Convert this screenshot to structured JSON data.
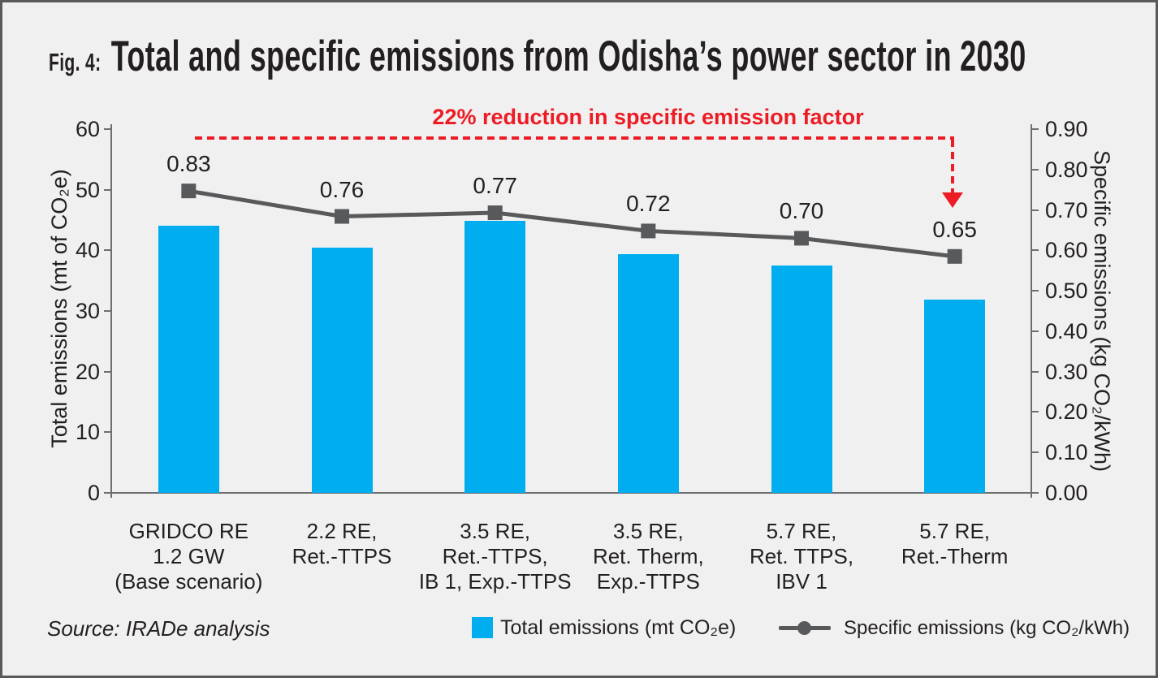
{
  "figure": {
    "fig_label": "Fig. 4:",
    "title": "Total and specific emissions from Odisha’s power sector in 2030"
  },
  "annotation": {
    "text": "22% reduction in specific emission factor",
    "color": "#ec1c24",
    "arrow": "dashed horizontal line with downward arrow pointing at last line marker"
  },
  "source": "Source: IRADe analysis",
  "legend": [
    {
      "swatch": "blue-square",
      "label": "Total emissions (mt CO₂e)",
      "color": "#00aeef"
    },
    {
      "swatch": "gray-line-with-dot",
      "label": "Specific emissions (kg CO₂/kWh)",
      "color": "#58595b"
    }
  ],
  "chart_data": {
    "type": "bar",
    "subtype": "bar+line combo, dual axis",
    "categories": [
      "GRIDCO RE\n1.2 GW\n(Base scenario)",
      "2.2 RE,\nRet.-TTPS",
      "3.5 RE,\nRet.-TTPS,\nIB 1, Exp.-TTPS",
      "3.5 RE,\nRet. Therm,\nExp.-TTPS",
      "5.7 RE,\nRet. TTPS,\nIBV 1",
      "5.7 RE,\nRet.-Therm"
    ],
    "series": [
      {
        "name": "Total emissions (mt CO₂e)",
        "type": "bar",
        "axis": "left",
        "values": [
          44.1,
          40.4,
          44.9,
          39.4,
          37.5,
          31.9
        ],
        "color": "#00aeef"
      },
      {
        "name": "Specific emissions (kg CO₂/kWh)",
        "type": "line",
        "axis": "right",
        "values": [
          0.83,
          0.76,
          0.77,
          0.72,
          0.7,
          0.65
        ],
        "labels": [
          "0.83",
          "0.76",
          "0.77",
          "0.72",
          "0.70",
          "0.65"
        ],
        "color": "#58595b",
        "marker": "square"
      }
    ],
    "left_axis": {
      "title": "Total emissions (mt of CO₂e)",
      "ticks": [
        "0",
        "10",
        "20",
        "30",
        "40",
        "50",
        "60"
      ],
      "min": 0,
      "max": 60
    },
    "right_axis": {
      "title": "Specific emissions (kg CO₂/kWh)",
      "ticks": [
        "0.00",
        "0.10",
        "0.20",
        "0.30",
        "0.40",
        "0.50",
        "0.60",
        "0.70",
        "0.80",
        "0.90"
      ],
      "min": 0,
      "max": 0.9
    },
    "grid": false,
    "legend_position": "bottom",
    "layout_note": "line markers are drawn at a height fraction equal to their value (plot top = 1.0), so they sit slightly below the equivalent right-axis tick"
  }
}
